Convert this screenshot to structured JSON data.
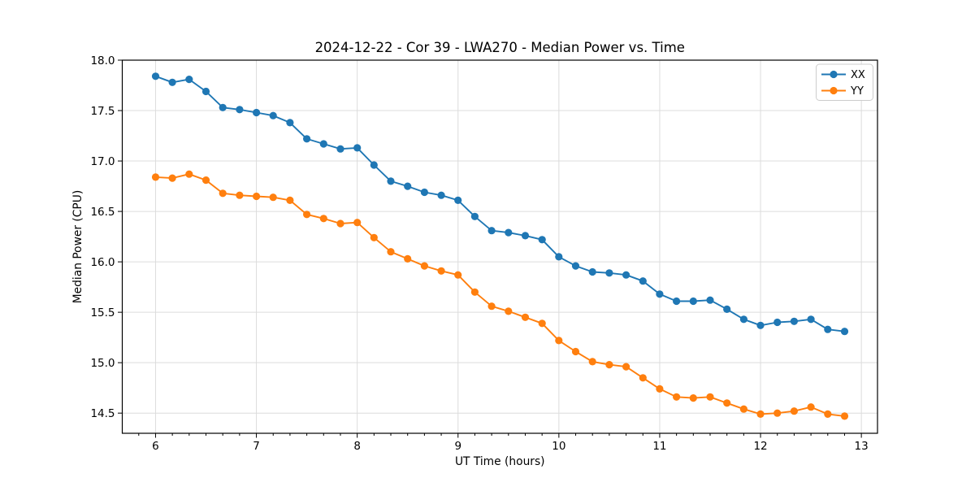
{
  "chart_data": {
    "type": "line",
    "title": "2024-12-22 - Cor 39 - LWA270 - Median Power vs. Time",
    "xlabel": "UT Time (hours)",
    "ylabel": "Median Power (CPU)",
    "xlim": [
      5.67,
      13.16
    ],
    "ylim": [
      14.3,
      18.0
    ],
    "xticks": [
      6,
      7,
      8,
      9,
      10,
      11,
      12,
      13
    ],
    "yticks": [
      14.5,
      15.0,
      15.5,
      16.0,
      16.5,
      17.0,
      17.5,
      18.0
    ],
    "x_minor_divisions_per_unit": 6,
    "grid": true,
    "legend_position": "upper right",
    "colors": {
      "grid": "#dcdcdc",
      "spine": "#000000",
      "text": "#000000",
      "background": "#ffffff",
      "legend_border": "#cccccc"
    },
    "x": [
      6,
      6.1667,
      6.3333,
      6.5,
      6.6667,
      6.8333,
      7,
      7.1667,
      7.3333,
      7.5,
      7.6667,
      7.8333,
      8,
      8.1667,
      8.3333,
      8.5,
      8.6667,
      8.8333,
      9,
      9.1667,
      9.3333,
      9.5,
      9.6667,
      9.8333,
      10,
      10.1667,
      10.3333,
      10.5,
      10.6667,
      10.8333,
      11,
      11.1667,
      11.3333,
      11.5,
      11.6667,
      11.8333,
      12,
      12.1667,
      12.3333,
      12.5,
      12.6667,
      12.8333
    ],
    "series": [
      {
        "name": "XX",
        "color": "#1f77b4",
        "marker": "circle",
        "values": [
          17.84,
          17.78,
          17.81,
          17.69,
          17.53,
          17.51,
          17.48,
          17.45,
          17.38,
          17.22,
          17.17,
          17.12,
          17.13,
          16.96,
          16.8,
          16.75,
          16.69,
          16.66,
          16.61,
          16.45,
          16.31,
          16.29,
          16.26,
          16.22,
          16.05,
          15.96,
          15.9,
          15.89,
          15.87,
          15.81,
          15.68,
          15.61,
          15.61,
          15.62,
          15.53,
          15.43,
          15.37,
          15.4,
          15.41,
          15.43,
          15.33,
          15.31
        ]
      },
      {
        "name": "YY",
        "color": "#ff7f0e",
        "marker": "circle",
        "values": [
          16.84,
          16.83,
          16.87,
          16.81,
          16.68,
          16.66,
          16.65,
          16.64,
          16.61,
          16.47,
          16.43,
          16.38,
          16.39,
          16.24,
          16.1,
          16.03,
          15.96,
          15.91,
          15.87,
          15.7,
          15.56,
          15.51,
          15.45,
          15.39,
          15.22,
          15.11,
          15.01,
          14.98,
          14.96,
          14.85,
          14.74,
          14.66,
          14.65,
          14.66,
          14.6,
          14.54,
          14.49,
          14.5,
          14.52,
          14.56,
          14.49,
          14.47
        ]
      }
    ]
  }
}
